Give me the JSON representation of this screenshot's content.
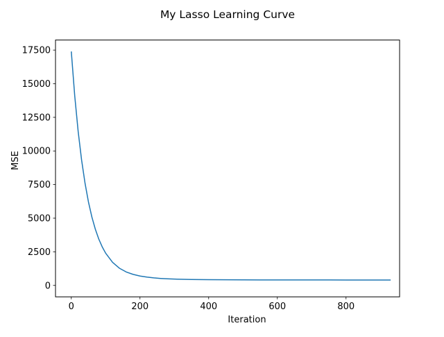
{
  "chart_data": {
    "type": "line",
    "title": "My Lasso Learning Curve",
    "xlabel": "Iteration",
    "ylabel": "MSE",
    "xlim": [
      -46,
      956
    ],
    "ylim": [
      -850,
      18250
    ],
    "x_ticks": [
      0,
      200,
      400,
      600,
      800
    ],
    "y_ticks": [
      0,
      2500,
      5000,
      7500,
      10000,
      12500,
      15000,
      17500
    ],
    "x_tick_labels": [
      "0",
      "200",
      "400",
      "600",
      "800"
    ],
    "y_tick_labels": [
      "0",
      "2500",
      "5000",
      "7500",
      "10000",
      "12500",
      "15000",
      "17500"
    ],
    "grid": false,
    "legend": "none",
    "series": [
      {
        "color": "#1f77b4",
        "x": [
          0,
          10,
          20,
          30,
          40,
          50,
          60,
          70,
          80,
          90,
          100,
          120,
          140,
          160,
          180,
          200,
          220,
          240,
          260,
          280,
          300,
          350,
          400,
          450,
          500,
          550,
          600,
          650,
          700,
          750,
          800,
          850,
          900,
          930
        ],
        "y": [
          17400,
          14100,
          11450,
          9320,
          7600,
          6200,
          5080,
          4180,
          3450,
          2870,
          2400,
          1720,
          1280,
          1000,
          820,
          700,
          620,
          560,
          520,
          490,
          470,
          440,
          425,
          418,
          413,
          410,
          408,
          406,
          405,
          404,
          403,
          402,
          402,
          402
        ]
      }
    ]
  }
}
